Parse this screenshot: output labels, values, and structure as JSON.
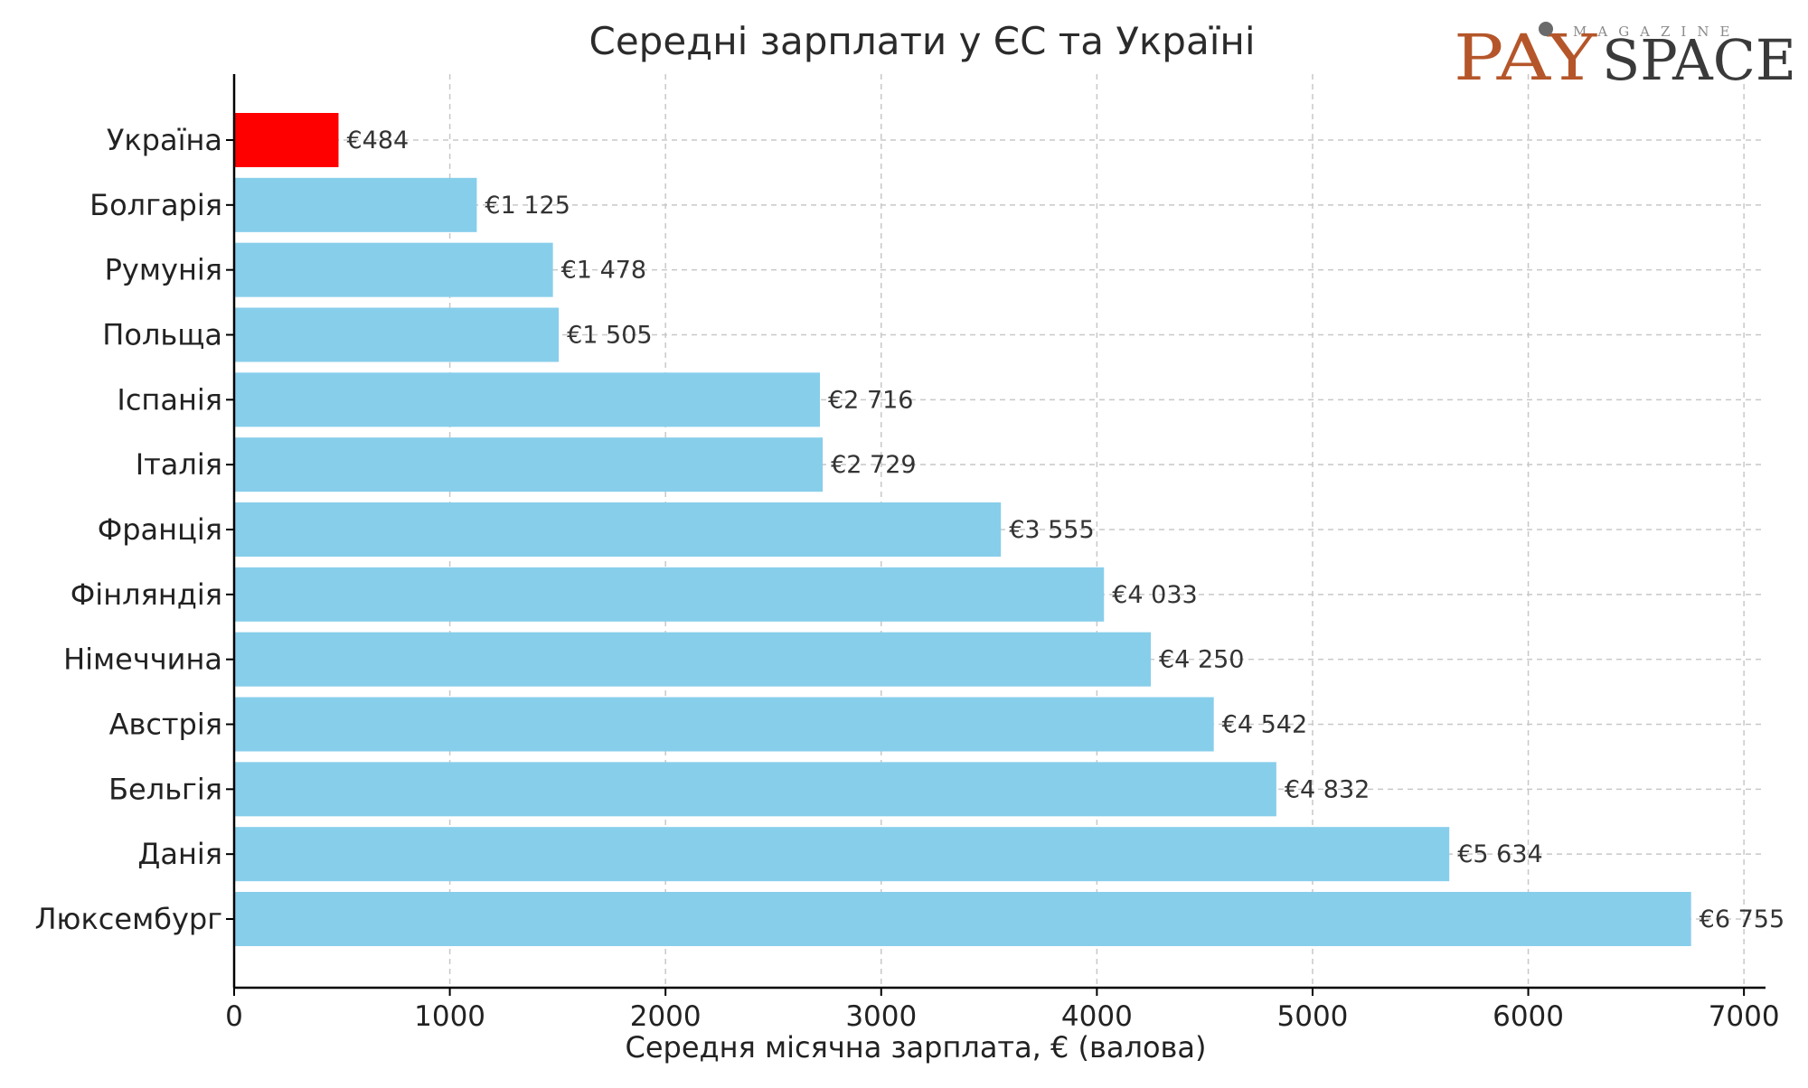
{
  "chart_data": {
    "type": "bar",
    "orientation": "horizontal",
    "title": "Середні зарплати у ЄС та Україні",
    "xlabel": "Середня місячна зарплата, € (валова)",
    "ylabel": "",
    "xlim": [
      0,
      7100
    ],
    "x_ticks": [
      0,
      1000,
      2000,
      3000,
      4000,
      5000,
      6000,
      7000
    ],
    "x_tick_labels": [
      "0",
      "1000",
      "2000",
      "3000",
      "4000",
      "5000",
      "6000",
      "7000"
    ],
    "grid": true,
    "categories": [
      "Україна",
      "Болгарія",
      "Румунія",
      "Польща",
      "Іспанія",
      "Італія",
      "Франція",
      "Фінляндія",
      "Німеччина",
      "Австрія",
      "Бельгія",
      "Данія",
      "Люксембург"
    ],
    "values": [
      484,
      1125,
      1478,
      1505,
      2716,
      2729,
      3555,
      4033,
      4250,
      4542,
      4832,
      5634,
      6755
    ],
    "data_labels": [
      "€484",
      "€1 125",
      "€1 478",
      "€1 505",
      "€2 716",
      "€2 729",
      "€3 555",
      "€4 033",
      "€4 250",
      "€4 542",
      "€4 832",
      "€5 634",
      "€6 755"
    ],
    "colors": {
      "highlight": "#ff0000",
      "default": "#87ceeb",
      "grid": "#c8c8c8",
      "axis": "#000000",
      "text": "#222222"
    },
    "highlight_category": "Україна"
  },
  "logo": {
    "pay_text": "PAY",
    "space_text": "SPACE",
    "magazine_text": "MAGAZINE"
  }
}
